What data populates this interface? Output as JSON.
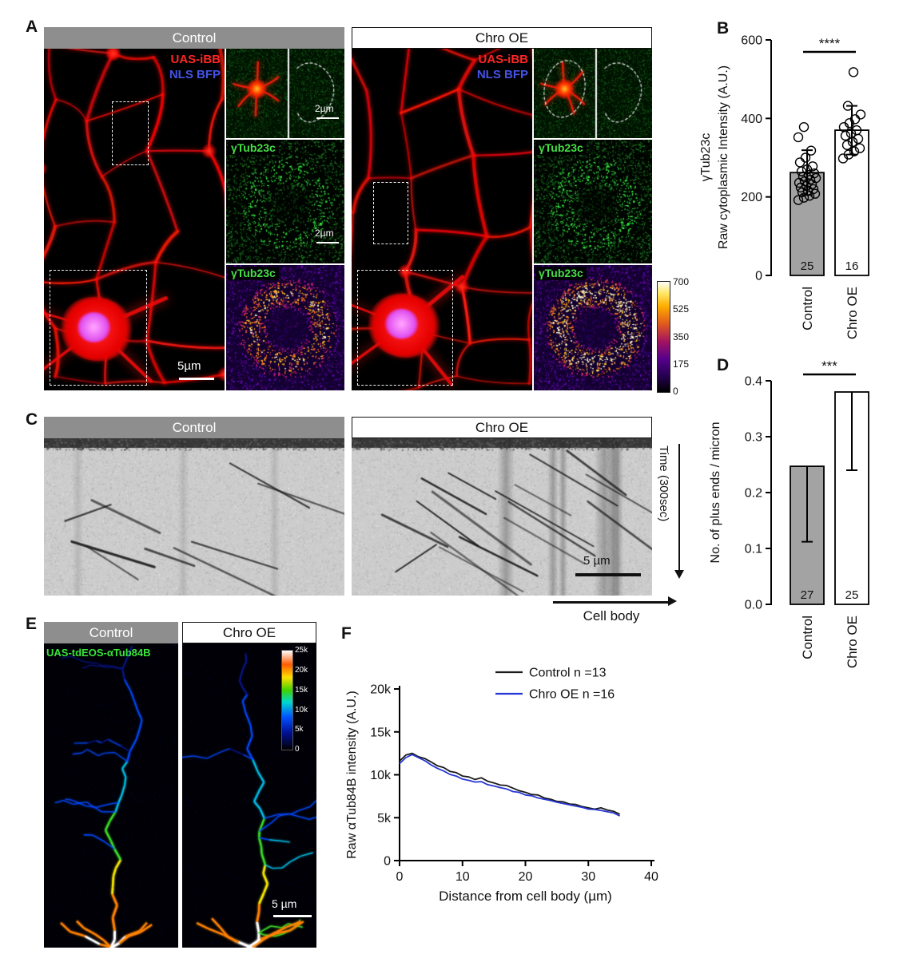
{
  "panels": {
    "A": {
      "label": "A",
      "control_header": "Control",
      "chro_header": "Chro OE",
      "uas_ibb": "UAS-iBB",
      "nls_bfp": "NLS BFP",
      "gtub": "γTub23c",
      "scale_main": "5µm",
      "scale_inset": "2µm",
      "colorbar_ticks": [
        "700",
        "525",
        "350",
        "175",
        "0"
      ]
    },
    "B": {
      "label": "B"
    },
    "C": {
      "label": "C",
      "control_header": "Control",
      "chro_header": "Chro OE",
      "time_label": "Time (300sec)",
      "cell_body": "Cell body",
      "scale": "5 µm"
    },
    "D": {
      "label": "D"
    },
    "E": {
      "label": "E",
      "control_header": "Control",
      "chro_header": "Chro OE",
      "construct": "UAS-tdEOS-αTub84B",
      "scale": "5 µm",
      "colorbar_ticks": [
        "25k",
        "20k",
        "15k",
        "10k",
        "5k",
        "0"
      ]
    },
    "F": {
      "label": "F"
    }
  },
  "chart_data": [
    {
      "id": "B",
      "type": "bar",
      "categories": [
        "Control",
        "Chro OE"
      ],
      "values": [
        262,
        370
      ],
      "errors": [
        57,
        62
      ],
      "error_style": "both",
      "n_labels": [
        "25",
        "16"
      ],
      "bar_colors": [
        "#a3a3a3",
        "#ffffff"
      ],
      "significance": "****",
      "ylabel_lines": [
        "γTub23c",
        "Raw cytoplasmic Intensity (A.U.)"
      ],
      "ylim": [
        0,
        600
      ],
      "yticks": [
        0,
        200,
        400,
        600
      ],
      "ytick_labels": [
        "0",
        "200",
        "400",
        "600"
      ],
      "scatter": [
        [
          192,
          198,
          203,
          208,
          212,
          216,
          220,
          224,
          228,
          232,
          236,
          240,
          244,
          248,
          252,
          256,
          260,
          265,
          270,
          278,
          288,
          300,
          318,
          352,
          378
        ],
        [
          298,
          308,
          316,
          324,
          332,
          340,
          348,
          356,
          362,
          370,
          378,
          388,
          398,
          410,
          432,
          518
        ]
      ]
    },
    {
      "id": "D",
      "type": "bar",
      "categories": [
        "Control",
        "Chro OE"
      ],
      "values": [
        0.247,
        0.38
      ],
      "errors": [
        0.135,
        0.14
      ],
      "error_style": "lower",
      "n_labels": [
        "27",
        "25"
      ],
      "bar_colors": [
        "#a3a3a3",
        "#ffffff"
      ],
      "significance": "***",
      "ylabel_lines": [
        "No. of plus ends / micron"
      ],
      "ylim": [
        0,
        0.4
      ],
      "yticks": [
        0,
        0.1,
        0.2,
        0.3,
        0.4
      ],
      "ytick_labels": [
        "0.0",
        "0.1",
        "0.2",
        "0.3",
        "0.4"
      ]
    },
    {
      "id": "F",
      "type": "line",
      "xlabel": "Distance from cell body (µm)",
      "ylabel": "Raw αTub84B intensity (A.U.)",
      "xlim": [
        0,
        40
      ],
      "ylim": [
        0,
        20000
      ],
      "xticks": [
        0,
        10,
        20,
        30,
        40
      ],
      "xtick_labels": [
        "0",
        "10",
        "20",
        "30",
        "40"
      ],
      "yticks": [
        0,
        5000,
        10000,
        15000,
        20000
      ],
      "ytick_labels": [
        "0",
        "5k",
        "10k",
        "15k",
        "20k"
      ],
      "series": [
        {
          "name": "Control n =13",
          "color": "#1a1a1a",
          "x": [
            0,
            1,
            2,
            3,
            4,
            5,
            6,
            7,
            8,
            9,
            10,
            11,
            12,
            13,
            14,
            15,
            16,
            17,
            18,
            19,
            20,
            21,
            22,
            23,
            24,
            25,
            26,
            27,
            28,
            29,
            30,
            31,
            32,
            33,
            34,
            35
          ],
          "y": [
            11600,
            12300,
            12500,
            12100,
            11900,
            11500,
            11050,
            10850,
            10400,
            10250,
            9850,
            9750,
            9450,
            9650,
            9250,
            9050,
            8800,
            8750,
            8450,
            8150,
            7950,
            7700,
            7650,
            7300,
            7150,
            6900,
            6850,
            6600,
            6550,
            6300,
            6150,
            6000,
            6150,
            5900,
            5750,
            5400
          ]
        },
        {
          "name": "Chro OE n =16",
          "color": "#2636d4",
          "x": [
            0,
            1,
            2,
            3,
            4,
            5,
            6,
            7,
            8,
            9,
            10,
            11,
            12,
            13,
            14,
            15,
            16,
            17,
            18,
            19,
            20,
            21,
            22,
            23,
            24,
            25,
            26,
            27,
            28,
            29,
            30,
            31,
            32,
            33,
            34,
            35
          ],
          "y": [
            11300,
            12000,
            12350,
            12000,
            11650,
            11150,
            10750,
            10450,
            10050,
            9850,
            9500,
            9350,
            9150,
            9200,
            8850,
            8700,
            8500,
            8350,
            8050,
            7950,
            7650,
            7550,
            7300,
            7150,
            7000,
            6800,
            6650,
            6500,
            6350,
            6200,
            6000,
            5950,
            5850,
            5700,
            5550,
            5200
          ]
        }
      ]
    }
  ]
}
